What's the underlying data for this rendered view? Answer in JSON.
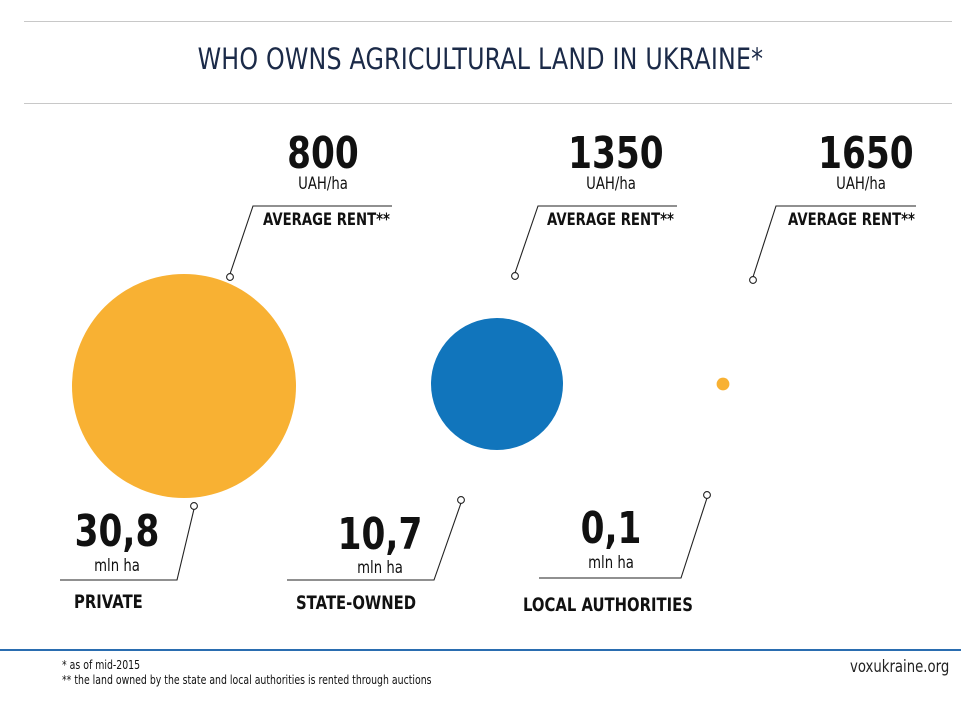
{
  "title": "WHO OWNS AGRICULTURAL LAND IN UKRAINE*",
  "colors": {
    "orange": "#F8B133",
    "blue": "#1175BC",
    "title": "#1B2A48",
    "accent_rule": "#2A6DB0"
  },
  "chart_data": {
    "type": "bubble",
    "title": "WHO OWNS AGRICULTURAL LAND IN UKRAINE*",
    "categories": [
      "PRIVATE",
      "STATE-OWNED",
      "LOCAL AUTHORITIES"
    ],
    "area_values": [
      30.8,
      10.7,
      0.1
    ],
    "area_value_labels": [
      "30,8",
      "10,7",
      "0,1"
    ],
    "area_unit": "mln ha",
    "rent_values": [
      800,
      1350,
      1650
    ],
    "rent_value_labels": [
      "800",
      "1350",
      "1650"
    ],
    "rent_unit": "UAH/ha",
    "rent_label": "AVERAGE RENT**",
    "bubble_colors": [
      "#F8B133",
      "#1175BC",
      "#F8B133"
    ]
  },
  "footnotes": [
    "* as of mid-2015",
    "** the land owned by the state and local authorities is rented through auctions"
  ],
  "source": "voxukraine.org"
}
